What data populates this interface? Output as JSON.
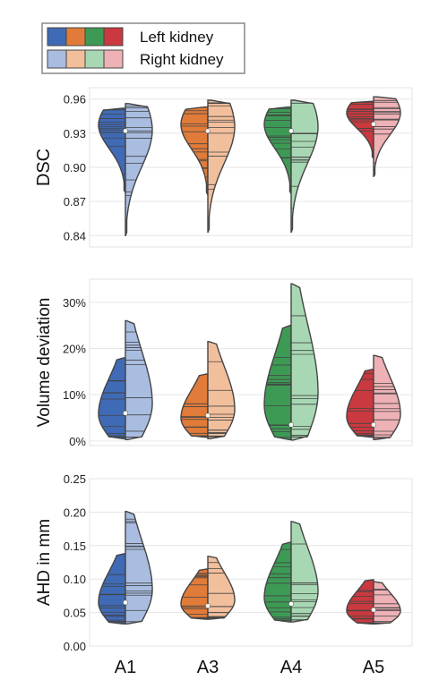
{
  "legend": {
    "position": "top-left",
    "entries": [
      {
        "label": "Left kidney",
        "colors": [
          "#3f6ab6",
          "#e07b39",
          "#3c9a55",
          "#c9393f"
        ]
      },
      {
        "label": "Right kidney",
        "colors": [
          "#a9bde0",
          "#f2bf9c",
          "#a8d8b3",
          "#eeb1b5"
        ]
      }
    ]
  },
  "colors": {
    "A1": {
      "left": "#3f6ab6",
      "right": "#a9bde0"
    },
    "A3": {
      "left": "#e07b39",
      "right": "#f2bf9c"
    },
    "A4": {
      "left": "#3c9a55",
      "right": "#a8d8b3"
    },
    "A5": {
      "left": "#c9393f",
      "right": "#eeb1b5"
    }
  },
  "chart_data": [
    {
      "type": "violin",
      "ylabel": "DSC",
      "ylim": [
        0.83,
        0.97
      ],
      "yticks": [
        0.84,
        0.87,
        0.9,
        0.93,
        0.96
      ],
      "ytick_labels": [
        "0.84",
        "0.87",
        "0.90",
        "0.93",
        "0.96"
      ],
      "grid": true,
      "categories": [
        "A1",
        "A3",
        "A4",
        "A5"
      ],
      "series": [
        {
          "category": "A1",
          "left_range": [
            0.878,
            0.952
          ],
          "right_range": [
            0.84,
            0.956
          ],
          "median": 0.932
        },
        {
          "category": "A3",
          "left_range": [
            0.876,
            0.953
          ],
          "right_range": [
            0.843,
            0.959
          ],
          "median": 0.932
        },
        {
          "category": "A4",
          "left_range": [
            0.877,
            0.953
          ],
          "right_range": [
            0.843,
            0.959
          ],
          "median": 0.932
        },
        {
          "category": "A5",
          "left_range": [
            0.908,
            0.958
          ],
          "right_range": [
            0.892,
            0.962
          ],
          "median": 0.938
        }
      ]
    },
    {
      "type": "violin",
      "ylabel": "Volume deviation",
      "ylim": [
        -1,
        35
      ],
      "yticks": [
        0,
        10,
        20,
        30
      ],
      "ytick_labels": [
        "0%",
        "10%",
        "20%",
        "30%"
      ],
      "grid": true,
      "categories": [
        "A1",
        "A3",
        "A4",
        "A5"
      ],
      "series": [
        {
          "category": "A1",
          "left_range": [
            0.5,
            18
          ],
          "right_range": [
            0.3,
            26
          ],
          "median": 6
        },
        {
          "category": "A3",
          "left_range": [
            0.8,
            14.5
          ],
          "right_range": [
            0.5,
            21.5
          ],
          "median": 5.5
        },
        {
          "category": "A4",
          "left_range": [
            0.3,
            25
          ],
          "right_range": [
            0.2,
            34
          ],
          "median": 3.5
        },
        {
          "category": "A5",
          "left_range": [
            0.8,
            15.5
          ],
          "right_range": [
            0.3,
            18.5
          ],
          "median": 3.5
        }
      ]
    },
    {
      "type": "violin",
      "ylabel": "AHD in mm",
      "ylim": [
        0,
        0.25
      ],
      "yticks": [
        0.0,
        0.05,
        0.1,
        0.15,
        0.2,
        0.25
      ],
      "ytick_labels": [
        "0.00",
        "0.05",
        "0.10",
        "0.15",
        "0.20",
        "0.25"
      ],
      "grid": true,
      "categories": [
        "A1",
        "A3",
        "A4",
        "A5"
      ],
      "series": [
        {
          "category": "A1",
          "left_range": [
            0.033,
            0.138
          ],
          "right_range": [
            0.033,
            0.201
          ],
          "median": 0.065
        },
        {
          "category": "A3",
          "left_range": [
            0.04,
            0.115
          ],
          "right_range": [
            0.04,
            0.134
          ],
          "median": 0.06
        },
        {
          "category": "A4",
          "left_range": [
            0.036,
            0.155
          ],
          "right_range": [
            0.036,
            0.186
          ],
          "median": 0.063
        },
        {
          "category": "A5",
          "left_range": [
            0.033,
            0.099
          ],
          "right_range": [
            0.033,
            0.096
          ],
          "median": 0.054
        }
      ]
    }
  ]
}
